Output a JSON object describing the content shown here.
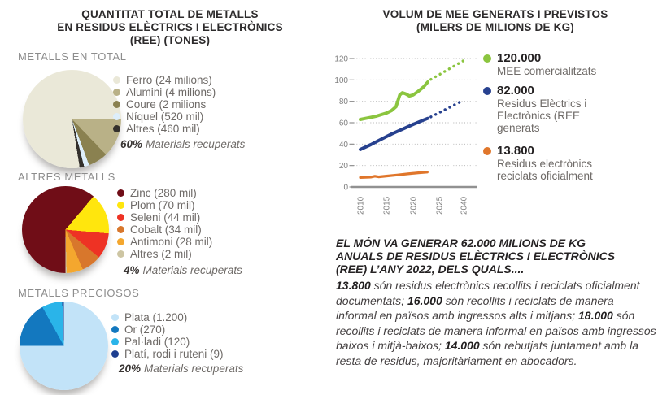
{
  "left_panel": {
    "title_lines": [
      "QUANTITAT TOTAL DE METALLS",
      "EN RESIDUS ELÈCTRICS I ELECTRÒNICS",
      "(REE) (TONES)"
    ]
  },
  "right_panel": {
    "title_lines": [
      "VOLUM DE MEE GENERATS I PREVISTOS",
      "(MILERS DE MILIONS DE KG)"
    ],
    "summary": {
      "heading_lines": [
        "EL MÓN VA GENERAR 62.000 MILIONS DE KG",
        "ANUALS DE RESIDUS ELÈCTRICS I ELECTRÒNICS",
        "(REE) L’ANY 2022, DELS QUALS...."
      ],
      "segments": [
        {
          "bold": "13.800"
        },
        {
          "text": " són residus electrònics recollits i reciclats oficialment documentats; "
        },
        {
          "bold": "16.000"
        },
        {
          "text": " són recollits i reciclats de manera informal en països amb ingressos alts i mitjans; "
        },
        {
          "bold": "18.000"
        },
        {
          "text": " són recollits i reciclats de manera informal en països amb ingressos baixos i mitjà-baixos; "
        },
        {
          "bold": "14.000"
        },
        {
          "text": " són rebutjats juntament amb la resta de residus, majoritàriament en abocadors."
        }
      ]
    }
  },
  "chart_data": [
    {
      "type": "pie",
      "title": "METALLS EN TOTAL",
      "units": "tones",
      "start_deg": 171,
      "slices": [
        {
          "label": "Ferro (24 milions)",
          "value": 24000000,
          "color": "#eae8d8"
        },
        {
          "label": "Alumini (4 milions)",
          "value": 4000000,
          "color": "#b9b187"
        },
        {
          "label": "Coure (2 milions",
          "value": 2000000,
          "color": "#8a8150"
        },
        {
          "label": "Níquel (520 mil)",
          "value": 520000,
          "color": "#ddeefa"
        },
        {
          "label": "Altres (460 mil)",
          "value": 460000,
          "color": "#33302c"
        }
      ],
      "recovered": "60%",
      "recovered_label": "Materials recuperats"
    },
    {
      "type": "pie",
      "title": "ALTRES METALLS",
      "units": "tones",
      "start_deg": 180,
      "slices": [
        {
          "label": "Zinc (280 mil)",
          "value": 280000,
          "color": "#700d17"
        },
        {
          "label": "Plom (70 mil)",
          "value": 70000,
          "color": "#ffe60d"
        },
        {
          "label": "Seleni (44 mil)",
          "value": 44000,
          "color": "#ee3224"
        },
        {
          "label": "Cobalt (34 mil)",
          "value": 34000,
          "color": "#d8772c"
        },
        {
          "label": "Antimoni (28 mil)",
          "value": 28000,
          "color": "#f4a72e"
        },
        {
          "label": "Altres (2 mil)",
          "value": 2000,
          "color": "#cdc5a3"
        }
      ],
      "recovered": "4%",
      "recovered_label": "Materials recuperats"
    },
    {
      "type": "pie",
      "title": "METALLS PRECIOSOS",
      "units": "tones",
      "start_deg": 0,
      "slices": [
        {
          "label": "Plata (1.200)",
          "value": 1200,
          "color": "#c2e3f8"
        },
        {
          "label": "Or (270)",
          "value": 270,
          "color": "#1378bf"
        },
        {
          "label": "Pal·ladi (120)",
          "value": 120,
          "color": "#2ab4e9"
        },
        {
          "label": "Platí, rodi i ruteni (9)",
          "value": 9,
          "color": "#1d3e8f"
        }
      ],
      "recovered": "20%",
      "recovered_label": "Materials recuperats"
    },
    {
      "type": "line",
      "title": "VOLUM DE MEE GENERATS I PREVISTOS",
      "ylabel": "MILERS DE MILIONS DE KG",
      "ylim": [
        0,
        120
      ],
      "y_ticks": [
        0,
        20,
        40,
        60,
        80,
        100,
        120
      ],
      "x_ticks": [
        "2010",
        "2015",
        "2020",
        "2025",
        "2040"
      ],
      "grid": "dotted",
      "legend_position": "right",
      "x_axis_note": "axis compressed after 2025",
      "series": [
        {
          "name": "MEE comercialitzats",
          "name_lines": [
            "MEE comercialitzats"
          ],
          "legend_value": "120.000",
          "color": "#8bc53f",
          "solid": [
            [
              2010,
              63
            ],
            [
              2011,
              64
            ],
            [
              2012,
              65
            ],
            [
              2013,
              66
            ],
            [
              2014,
              67.5
            ],
            [
              2015,
              69
            ],
            [
              2016,
              71.5
            ],
            [
              2016.8,
              75
            ],
            [
              2017.5,
              86
            ],
            [
              2018,
              88
            ],
            [
              2018.6,
              87
            ],
            [
              2019.3,
              85
            ],
            [
              2020,
              86
            ],
            [
              2021,
              89.5
            ],
            [
              2022,
              93.5
            ],
            [
              2022.8,
              98
            ]
          ],
          "projected": [
            [
              2023.4,
              100.5
            ],
            [
              2040,
              118
            ]
          ]
        },
        {
          "name": "Residus Elèctrics i Electrònics (REE generats",
          "name_lines": [
            "Residus Elèctrics i",
            "Electrònics (REE",
            "generats"
          ],
          "legend_value": "82.000",
          "color": "#27418f",
          "solid": [
            [
              2010,
              35
            ],
            [
              2012,
              39.5
            ],
            [
              2014,
              44.5
            ],
            [
              2016,
              49.5
            ],
            [
              2018,
              54
            ],
            [
              2020,
              58.5
            ],
            [
              2022,
              62.5
            ],
            [
              2022.8,
              64
            ]
          ],
          "projected": [
            [
              2023.4,
              65.5
            ],
            [
              2040,
              81
            ]
          ]
        },
        {
          "name": "Residus electrònics reciclats oficialment",
          "name_lines": [
            "Residus electrònics",
            "reciclats oficialment"
          ],
          "legend_value": "13.800",
          "color": "#e0762b",
          "solid": [
            [
              2010,
              8.8
            ],
            [
              2011,
              9
            ],
            [
              2012,
              9.2
            ],
            [
              2012.8,
              10
            ],
            [
              2013.5,
              9.4
            ],
            [
              2015,
              10.2
            ],
            [
              2017,
              11.2
            ],
            [
              2019,
              12.2
            ],
            [
              2021,
              13.2
            ],
            [
              2022.7,
              13.8
            ]
          ],
          "projected": []
        }
      ]
    }
  ]
}
